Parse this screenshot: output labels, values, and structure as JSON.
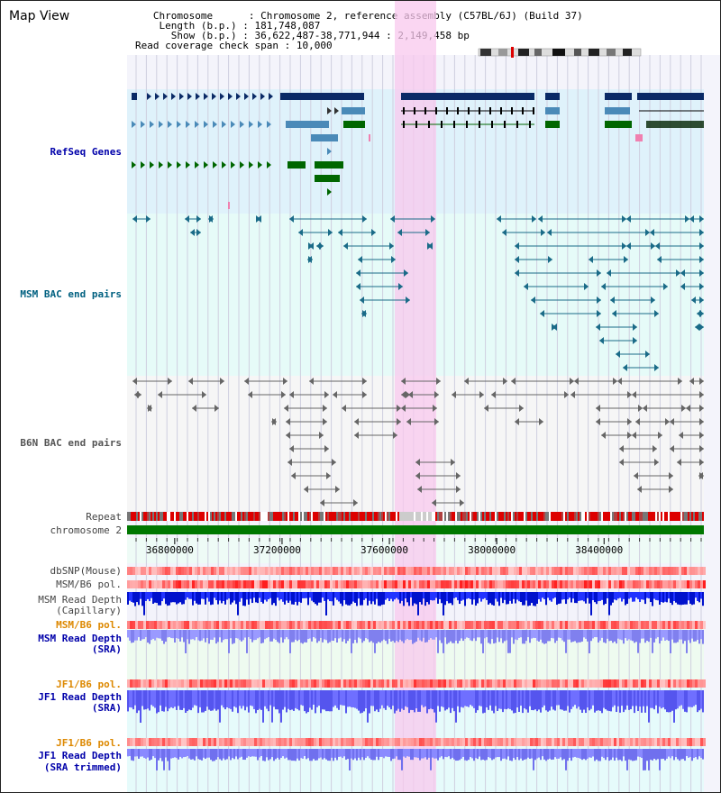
{
  "title": "Map View",
  "info": {
    "chromosome_key": "Chromosome",
    "chromosome_val": "Chromosome 2, reference assembly (C57BL/6J) (Build 37)",
    "length_key": "Length (b.p.)",
    "length_val": "181,748,087",
    "show_key": "Show (b.p.)",
    "show_val": "36,622,487-38,771,944 : 2,149,458 bp",
    "span_key": "Read coverage check span",
    "span_val": "10,000"
  },
  "tracks": {
    "refseq": "RefSeq Genes",
    "msm_bac": "MSM BAC end pairs",
    "b6n_bac": "B6N BAC end pairs",
    "repeat": "Repeat",
    "chromosome": "chromosome 2",
    "dbsnp": "dbSNP(Mouse)",
    "msm_b6_pol_1": "MSM/B6 pol.",
    "msm_depth_cap_1": "MSM Read Depth",
    "msm_depth_cap_2": "(Capillary)",
    "msm_b6_pol_2": "MSM/B6 pol.",
    "msm_depth_sra_1": "MSM Read Depth",
    "msm_depth_sra_2": "(SRA)",
    "jf1_b6_pol_1": "JF1/B6 pol.",
    "jf1_depth_sra_1": "JF1 Read Depth",
    "jf1_depth_sra_2": "(SRA)",
    "jf1_b6_pol_2": "JF1/B6 pol.",
    "jf1_depth_trim_1": "JF1 Read Depth",
    "jf1_depth_trim_2": "(SRA trimmed)"
  },
  "axis": {
    "ticks": [
      36800000,
      37200000,
      37600000,
      38000000,
      38400000
    ],
    "range": [
      36622487,
      38771944
    ]
  },
  "colors": {
    "refseq_bg": "#dff2fb",
    "bac_bg": "#e6fbf8",
    "highlight": "#f8c8ee",
    "gene_dark": "#0a2a66",
    "gene_light": "#4a8ab8",
    "gene_green": "#006600",
    "msm_line": "#1a6b88",
    "b6n_line": "#666666",
    "chrom_green": "#007700",
    "depth_blue": "#0022ee",
    "depth_light": "#8888ff"
  }
}
